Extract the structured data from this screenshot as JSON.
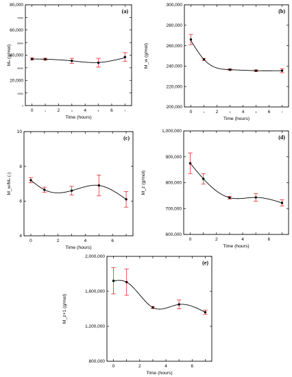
{
  "chart_data": [
    {
      "type": "line",
      "panel_label": "(a)",
      "xlabel": "Time (hours)",
      "ylabel": "Mₙ (g/mol)",
      "x_ticks": [
        0,
        1,
        2,
        3,
        4,
        5,
        6,
        7
      ],
      "x_tick_labels": [
        "0",
        "1",
        "2",
        "3",
        "4",
        "5",
        "6",
        "7"
      ],
      "x_label_small": [
        false,
        true,
        false,
        true,
        false,
        true,
        false,
        true
      ],
      "ylim": [
        0,
        80000
      ],
      "y_ticks": [
        0,
        10000,
        20000,
        30000,
        40000,
        50000,
        60000,
        70000,
        80000
      ],
      "y_tick_labels": [
        "0",
        "10000",
        "20,000",
        "30000",
        "40,000",
        "50000",
        "60,000",
        "70000",
        "80,000"
      ],
      "y_label_small": [
        true,
        true,
        false,
        true,
        false,
        true,
        false,
        true,
        false
      ],
      "xlim": [
        -0.5,
        7.5
      ],
      "curve_x": [
        0,
        1,
        3,
        5,
        7
      ],
      "curve_y": [
        37000,
        36800,
        35500,
        34200,
        38000
      ],
      "points": [
        {
          "x": 0,
          "y": 37000,
          "err": 800
        },
        {
          "x": 1,
          "y": 36800,
          "err": 800
        },
        {
          "x": 3,
          "y": 35500,
          "err": 2000
        },
        {
          "x": 5,
          "y": 34000,
          "err": 3500
        },
        {
          "x": 7,
          "y": 38500,
          "err": 3500
        }
      ]
    },
    {
      "type": "line",
      "panel_label": "(b)",
      "xlabel": "Time (hours)",
      "ylabel": "M_w (g/mol)",
      "x_ticks": [
        0,
        1,
        2,
        3,
        4,
        5,
        6,
        7
      ],
      "x_tick_labels": [
        "0",
        "1",
        "2",
        "3",
        "4",
        "5",
        "6",
        "7"
      ],
      "x_label_small": [
        false,
        true,
        false,
        true,
        false,
        true,
        false,
        true
      ],
      "ylim": [
        200000,
        300000
      ],
      "y_ticks": [
        200000,
        220000,
        240000,
        260000,
        280000,
        300000
      ],
      "y_tick_labels": [
        "200,000",
        "220,000",
        "240,000",
        "260,000",
        "280,000",
        "300,000"
      ],
      "y_label_small": [
        false,
        false,
        false,
        false,
        false,
        false
      ],
      "xlim": [
        -0.5,
        7.5
      ],
      "curve_x": [
        0,
        1,
        3,
        5,
        7
      ],
      "curve_y": [
        265000,
        246500,
        236500,
        235500,
        235500
      ],
      "points": [
        {
          "x": 0,
          "y": 266000,
          "err": 5000
        },
        {
          "x": 1,
          "y": 246500,
          "err": 1000
        },
        {
          "x": 3,
          "y": 236500,
          "err": 800
        },
        {
          "x": 5,
          "y": 235500,
          "err": 800
        },
        {
          "x": 7,
          "y": 235500,
          "err": 2000
        }
      ]
    },
    {
      "type": "line",
      "panel_label": "(c)",
      "xlabel": "Time (hours)",
      "ylabel": "M_w/Mₙ (-)",
      "x_ticks": [
        0,
        1,
        2,
        3,
        4,
        5,
        6,
        7
      ],
      "x_tick_labels": [
        "0",
        "",
        "2",
        "",
        "4",
        "",
        "6",
        ""
      ],
      "x_label_small": [
        false,
        false,
        false,
        false,
        false,
        false,
        false,
        false
      ],
      "ylim": [
        4,
        10
      ],
      "y_ticks": [
        4,
        6,
        8,
        10
      ],
      "y_tick_labels": [
        "4",
        "6",
        "8",
        "10"
      ],
      "y_label_small": [
        false,
        false,
        false,
        false
      ],
      "xlim": [
        -0.5,
        7.5
      ],
      "curve_x": [
        0,
        1,
        3,
        5,
        7
      ],
      "curve_y": [
        7.2,
        6.65,
        6.6,
        6.9,
        6.1
      ],
      "points": [
        {
          "x": 0,
          "y": 7.2,
          "err": 0.15
        },
        {
          "x": 1,
          "y": 6.65,
          "err": 0.15
        },
        {
          "x": 3,
          "y": 6.6,
          "err": 0.25
        },
        {
          "x": 5,
          "y": 6.9,
          "err": 0.6
        },
        {
          "x": 7,
          "y": 6.1,
          "err": 0.45
        }
      ]
    },
    {
      "type": "line",
      "panel_label": "(d)",
      "xlabel": "Time (hours)",
      "ylabel": "M_z (g/mol)",
      "x_ticks": [
        0,
        1,
        2,
        3,
        4,
        5,
        6,
        7
      ],
      "x_tick_labels": [
        "0",
        "",
        "2",
        "",
        "4",
        "",
        "6",
        ""
      ],
      "x_label_small": [
        false,
        false,
        false,
        false,
        false,
        false,
        false,
        false
      ],
      "ylim": [
        600000,
        1000000
      ],
      "y_ticks": [
        600000,
        700000,
        800000,
        900000,
        1000000
      ],
      "y_tick_labels": [
        "600,000",
        "700,000",
        "800,000",
        "900,000",
        "1,000,000"
      ],
      "y_label_small": [
        false,
        false,
        false,
        false,
        false
      ],
      "xlim": [
        -0.5,
        7.5
      ],
      "curve_x": [
        0,
        1,
        3,
        5,
        7
      ],
      "curve_y": [
        875000,
        815000,
        742000,
        743000,
        722000
      ],
      "points": [
        {
          "x": 0,
          "y": 875000,
          "err": 40000
        },
        {
          "x": 1,
          "y": 815000,
          "err": 20000
        },
        {
          "x": 3,
          "y": 742000,
          "err": 5000
        },
        {
          "x": 5,
          "y": 743000,
          "err": 15000
        },
        {
          "x": 7,
          "y": 722000,
          "err": 12000
        }
      ]
    },
    {
      "type": "line",
      "panel_label": "(e)",
      "xlabel": "Time (hours)",
      "ylabel": "M_z+1 (g/mol)",
      "x_ticks": [
        0,
        1,
        2,
        3,
        4,
        5,
        6,
        7
      ],
      "x_tick_labels": [
        "0",
        "",
        "2",
        "",
        "4",
        "",
        "6",
        ""
      ],
      "x_label_small": [
        false,
        false,
        false,
        false,
        false,
        false,
        false,
        false
      ],
      "ylim": [
        800000,
        2000000
      ],
      "y_ticks": [
        800000,
        1200000,
        1600000,
        2000000
      ],
      "y_tick_labels": [
        "800,000",
        "1,200,000",
        "1,600,000",
        "2,000,000"
      ],
      "y_label_small": [
        false,
        false,
        false,
        false
      ],
      "xlim": [
        -0.5,
        7.5
      ],
      "curve_x": [
        0,
        1,
        3,
        5,
        7
      ],
      "curve_y": [
        1720000,
        1705000,
        1415000,
        1450000,
        1360000
      ],
      "points": [
        {
          "x": 0,
          "y": 1720000,
          "err": 150000
        },
        {
          "x": 1,
          "y": 1705000,
          "err": 150000
        },
        {
          "x": 3,
          "y": 1415000,
          "err": 12000
        },
        {
          "x": 5,
          "y": 1450000,
          "err": 50000
        },
        {
          "x": 7,
          "y": 1360000,
          "err": 25000
        }
      ]
    }
  ],
  "colors": {
    "marker": "#000000",
    "error_bar": "#e8262a",
    "curve": "#000000",
    "axis": "#000000"
  }
}
